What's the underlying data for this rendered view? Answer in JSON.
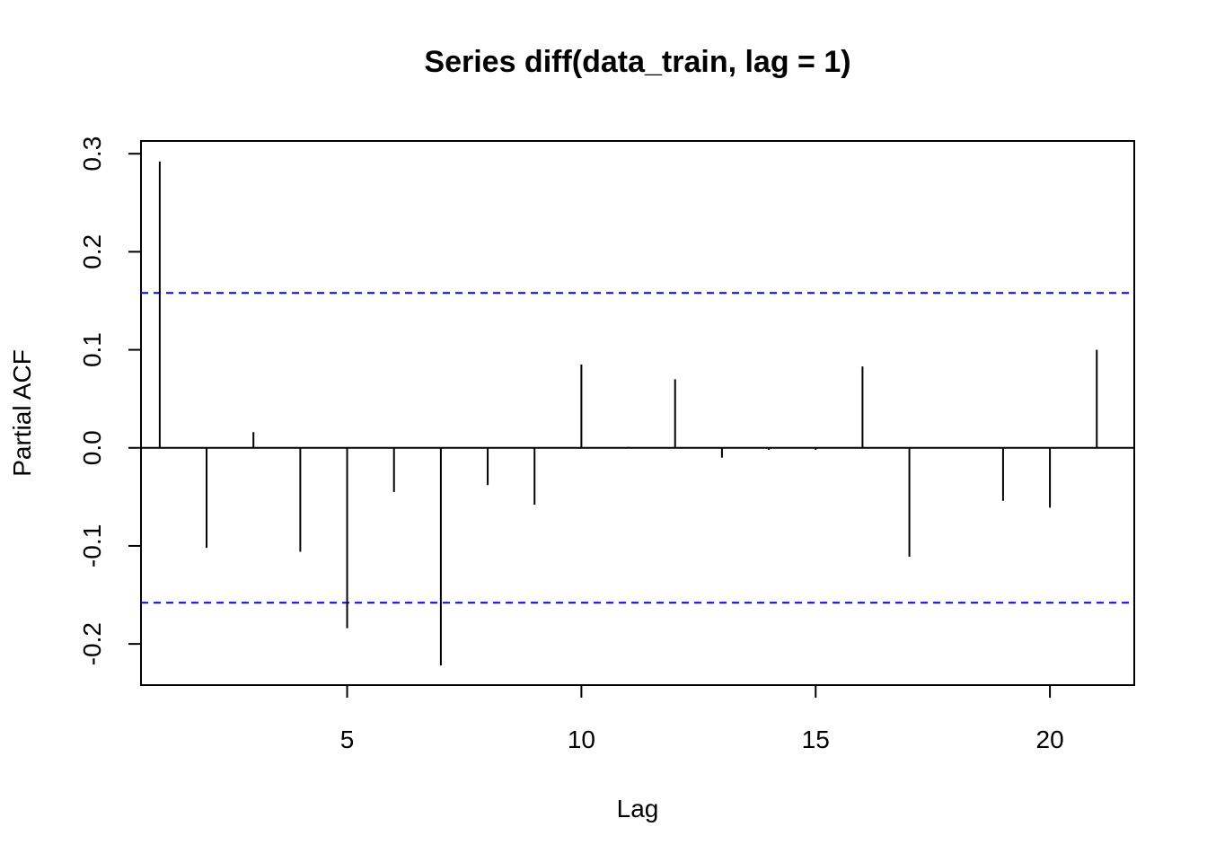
{
  "chart_data": {
    "type": "bar",
    "subtype": "pacf",
    "title": "Series  diff(data_train, lag = 1)",
    "xlabel": "Lag",
    "ylabel": "Partial ACF",
    "xlim": [
      0.6,
      21.8
    ],
    "ylim": [
      -0.242,
      0.313
    ],
    "x_ticks": [
      5,
      10,
      15,
      20
    ],
    "x_tick_labels": [
      "5",
      "10",
      "15",
      "20"
    ],
    "y_ticks": [
      -0.2,
      -0.1,
      0.0,
      0.1,
      0.2,
      0.3
    ],
    "y_tick_labels": [
      "-0.2",
      "-0.1",
      "0.0",
      "0.1",
      "0.2",
      "0.3"
    ],
    "lags": [
      1,
      2,
      3,
      4,
      5,
      6,
      7,
      8,
      9,
      10,
      11,
      12,
      13,
      14,
      15,
      16,
      17,
      18,
      19,
      20,
      21
    ],
    "values": [
      0.292,
      -0.102,
      0.016,
      -0.106,
      -0.184,
      -0.045,
      -0.222,
      -0.038,
      -0.058,
      0.085,
      0.001,
      0.07,
      -0.01,
      -0.002,
      -0.002,
      0.083,
      -0.111,
      0.0,
      -0.054,
      -0.061,
      0.1
    ],
    "confidence_bound": 0.158,
    "confidence_color": "#0000ff",
    "bar_color": "#000000",
    "grid": false,
    "legend": "none"
  }
}
